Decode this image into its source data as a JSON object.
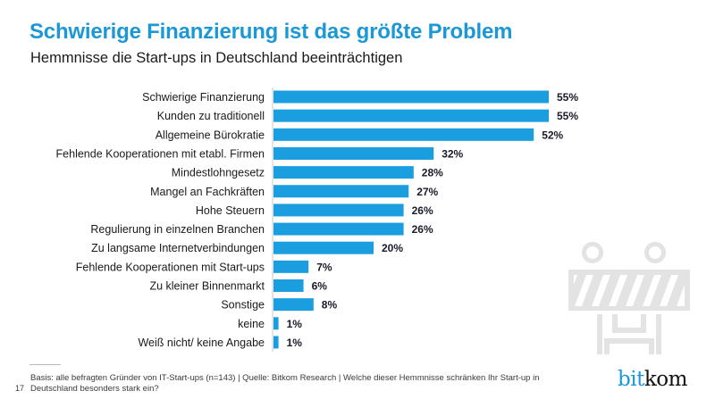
{
  "header": {
    "title": "Schwierige Finanzierung ist das größte Problem",
    "subtitle": "Hemmnisse die Start-ups in Deutschland beeinträchtigen"
  },
  "chart_data": {
    "type": "bar",
    "orientation": "horizontal",
    "title": "Schwierige Finanzierung ist das größte Problem",
    "subtitle": "Hemmnisse die Start-ups in Deutschland beeinträchtigen",
    "xlabel": "",
    "ylabel": "",
    "unit": "%",
    "xlim": [
      0,
      55
    ],
    "grid": false,
    "legend": "none",
    "bar_color": "#1a9ee0",
    "categories": [
      "Schwierige Finanzierung",
      "Kunden zu traditionell",
      "Allgemeine Bürokratie",
      "Fehlende Kooperationen mit etabl. Firmen",
      "Mindestlohngesetz",
      "Mangel an Fachkräften",
      "Hohe Steuern",
      "Regulierung in einzelnen Branchen",
      "Zu langsame Internetverbindungen",
      "Fehlende Kooperationen mit Start-ups",
      "Zu kleiner Binnenmarkt",
      "Sonstige",
      "keine",
      "Weiß nicht/ keine Angabe"
    ],
    "values": [
      55,
      55,
      52,
      32,
      28,
      27,
      26,
      26,
      20,
      7,
      6,
      8,
      1,
      1
    ],
    "value_labels": [
      "55%",
      "55%",
      "52%",
      "32%",
      "28%",
      "27%",
      "26%",
      "26%",
      "20%",
      "7%",
      "6%",
      "8%",
      "1%",
      "1%"
    ]
  },
  "footer": {
    "footnote": "Basis: alle befragten Gründer von IT-Start-ups (n=143) | Quelle: Bitkom Research | Welche dieser Hemmnisse schränken Ihr Start-up in Deutschland besonders stark ein?",
    "page_number": "17",
    "logo_part1": "bit",
    "logo_part2": "kom"
  },
  "decoration": {
    "icon": "road-barrier-icon",
    "icon_color": "#e3e3e3"
  }
}
